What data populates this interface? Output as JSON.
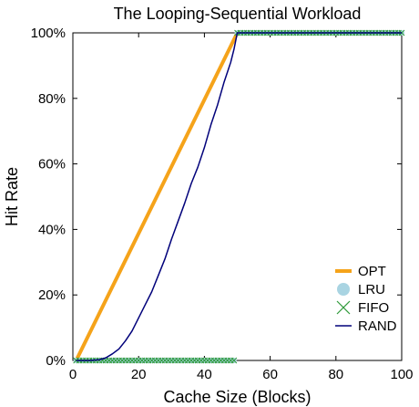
{
  "chart_data": {
    "type": "line",
    "title": "The Looping-Sequential Workload",
    "xlabel": "Cache Size (Blocks)",
    "ylabel": "Hit Rate",
    "xlim": [
      0,
      100
    ],
    "ylim": [
      0,
      100
    ],
    "x_ticks": [
      0,
      20,
      40,
      60,
      80,
      100
    ],
    "y_ticks": [
      0,
      20,
      40,
      60,
      80,
      100
    ],
    "x_tick_labels": [
      "0",
      "20",
      "40",
      "60",
      "80",
      "100"
    ],
    "y_tick_labels": [
      "0%",
      "20%",
      "40%",
      "60%",
      "80%",
      "100%"
    ],
    "grid": false,
    "legend_position": "bottom-right",
    "series": [
      {
        "name": "OPT",
        "style": "line",
        "color": "#f5a31a",
        "points": [
          [
            1,
            0
          ],
          [
            50,
            100
          ],
          [
            100,
            100
          ]
        ]
      },
      {
        "name": "LRU",
        "style": "circle",
        "color": "#a9d4e2",
        "points": [
          [
            1,
            0
          ],
          [
            49,
            0
          ],
          [
            50,
            100
          ],
          [
            100,
            100
          ]
        ]
      },
      {
        "name": "FIFO",
        "style": "cross",
        "color": "#2f9a3a",
        "points": [
          [
            1,
            0
          ],
          [
            49,
            0
          ],
          [
            50,
            100
          ],
          [
            100,
            100
          ]
        ]
      },
      {
        "name": "RAND",
        "style": "line",
        "color": "#00007a",
        "points": [
          [
            1,
            0
          ],
          [
            5,
            0
          ],
          [
            8,
            0.2
          ],
          [
            10,
            0.8
          ],
          [
            12,
            2
          ],
          [
            14,
            3.5
          ],
          [
            16,
            6
          ],
          [
            18,
            9
          ],
          [
            20,
            13
          ],
          [
            22,
            17
          ],
          [
            24,
            21
          ],
          [
            26,
            26
          ],
          [
            28,
            31
          ],
          [
            30,
            37
          ],
          [
            32,
            42.5
          ],
          [
            34,
            48
          ],
          [
            36,
            54
          ],
          [
            38,
            59
          ],
          [
            40,
            65
          ],
          [
            42,
            72
          ],
          [
            44,
            78
          ],
          [
            46,
            85
          ],
          [
            48,
            91
          ],
          [
            49,
            95
          ],
          [
            50,
            100
          ],
          [
            100,
            100
          ]
        ]
      }
    ]
  }
}
